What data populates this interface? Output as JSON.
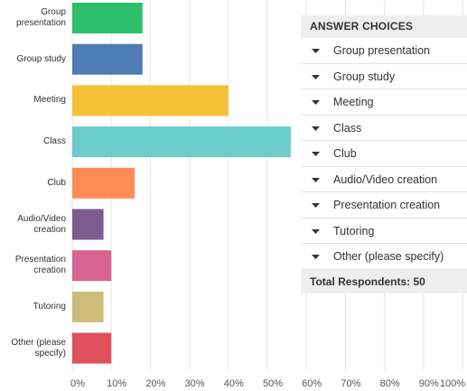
{
  "chart_data": {
    "type": "bar",
    "orientation": "horizontal",
    "categories": [
      "Group presentation",
      "Group study",
      "Meeting",
      "Class",
      "Club",
      "Audio/Video creation",
      "Presentation creation",
      "Tutoring",
      "Other (please specify)"
    ],
    "values": [
      18,
      18,
      40,
      56,
      16,
      8,
      10,
      8,
      10
    ],
    "colors": [
      "#2dbe6c",
      "#507cb6",
      "#f7c137",
      "#6ccbcb",
      "#ff8b54",
      "#7d5b8f",
      "#d9648f",
      "#cfbb7b",
      "#e0515e"
    ],
    "xlim": [
      0,
      100
    ],
    "xticks": [
      {
        "value": 0,
        "label": "0%"
      },
      {
        "value": 10,
        "label": "10%"
      },
      {
        "value": 20,
        "label": "20%"
      },
      {
        "value": 30,
        "label": "30%"
      },
      {
        "value": 40,
        "label": "40%"
      },
      {
        "value": 50,
        "label": "50%"
      },
      {
        "value": 60,
        "label": "60%"
      },
      {
        "value": 70,
        "label": "70%"
      },
      {
        "value": 80,
        "label": "80%"
      },
      {
        "value": 90,
        "label": "90%"
      },
      {
        "value": 100,
        "label": "100%"
      }
    ],
    "grid": true
  },
  "answer_table": {
    "header": "ANSWER CHOICES",
    "rows": [
      "Group presentation",
      "Group study",
      "Meeting",
      "Class",
      "Club",
      "Audio/Video creation",
      "Presentation creation",
      "Tutoring",
      "Other (please specify)"
    ],
    "total": "Total Respondents: 50"
  }
}
